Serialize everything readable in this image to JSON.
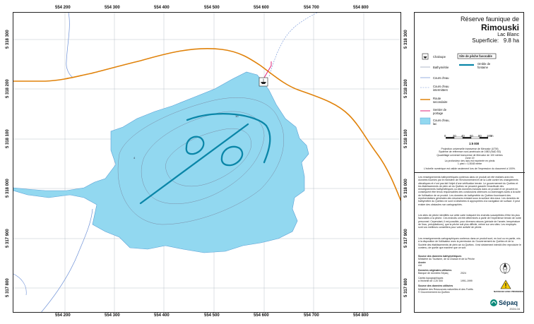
{
  "map": {
    "x_ticks_top": [
      "554 200",
      "554 300",
      "554 400",
      "554 500",
      "554 600",
      "554 700",
      "554 800"
    ],
    "x_ticks_bottom": [
      "554 200",
      "554 300",
      "554 400",
      "554 500",
      "554 600",
      "554 700",
      "554 800"
    ],
    "y_ticks": [
      "5 318 300",
      "5 318 200",
      "5 318 100",
      "5 318 000",
      "5 317 900",
      "5 317 800"
    ],
    "contour_labels": [
      "10",
      "4",
      "6"
    ]
  },
  "title": {
    "line1": "Réserve faunique de",
    "line2": "Rimouski",
    "line3": "Lac Blanc",
    "area_label": "Superficie:",
    "area_value": "9.8 ha"
  },
  "legend": {
    "chaloupe": "Chaloupe",
    "bathymetrie": "Bathymétrie",
    "cours_eau": "Cours d'eau",
    "cours_eau_int_1": "Cours d'eau",
    "cours_eau_int_2": "intermittent",
    "route_1": "Route",
    "route_2": "secondaire",
    "sentier_1": "Sentier de",
    "sentier_2": "portage",
    "lac_1": "Cours d'eau,",
    "lac_2": "lac",
    "site_title": "Site de pêche favorable",
    "omble_1": "Omble de",
    "omble_2": "fontaine"
  },
  "scale": {
    "ticks": [
      "0",
      "20",
      "40",
      "60",
      "80",
      "100"
    ],
    "unit": "m",
    "ratio": "1:5 000"
  },
  "projection": [
    "Projection universelle transverse de Mercator (UTM)",
    "Système de référence nord-américain de 1983 (NAD 83)",
    "Quadrillage universel transverse de Mercator de 100 mètres",
    "Zone 19",
    "La profondeur des lacs est exprimée en pieds",
    "1 pied = 0,3048 mètre"
  ],
  "scale_note": "L'échelle numérique est valide seulement lors de l'impression du document à 100%.",
  "paragraphs": [
    "Les renseignements bathymétriques contenus dans ce produit ont été réalisés avec les données fournies par le ministère de l'Environnement et de la Lutte contre les changements climatiques et n'ont pas fait l'objet d'une vérification terrain. Le gouvernement du Québec et les établissements de plein air du Québec ne peuvent garantir l'exactitude des renseignements bathymétriques ou des données incluses dans ce produit et ne peuvent en conséquent être tenus responsables des conclusions obtenues ou dommages subis à la suite de l'utilisation de ce produit. Les données de bathymétrie du Québec fournissent des représentations générales des structures existant sous la surface des eaux. Les données de bathymétrie du Québec ne sont ni destinées ni appropriées à la navigation de surface. Il peut exister des obstacles non cartographiés.",
    "Les sites de pêche identifiés sur cette carte indiquent les endroits susceptibles d'être les plus favorables à la pêche. Ces endroits ont été déterminés à partir de l'expérience terrain de notre personnel. Cependant, il est possible, pour diverses raisons (période de l'année, température de l'eau, précipitations), que la pêche soit plus difficile, même sur ces sites. Les employés sont vos meilleurs conseillers pour votre activité de pêche.",
    "Les renseignements cartographiques contenus dans ce produit sont, en tout ou en partie, mis à la disposition de l'utilisateur avec la permission du Gouvernement du Québec et de la Société des établissements de plein air du Québec. Il est strictement interdit d'en reproduire le contenu, de quelle que manière que ce soit."
  ],
  "sources": {
    "bathy_title": "Source des données bathymétriques",
    "bathy_1": "Ministère du Tourisme, de la Chasse et de la Pêche",
    "bathy_label": "Année",
    "bathy_value": "n/d",
    "orig_title": "Données originales utilisées",
    "orig_row1_label": "Banque de données Sépaq",
    "orig_row1_year": "2024",
    "orig_row2_label": "Cartes topographiques",
    "orig_row2_label2": "à l'échelle de 1:20 000",
    "orig_row2_year": "1991-1999",
    "other_title": "Source des données utilisées",
    "other_1": "Ministère des Ressources naturelles et des Forêts",
    "other_2": "© Gouvernement du Québec"
  },
  "warning": "NAVIGUEZ AVEC PRUDENCE",
  "logo": "Sépaq",
  "date": "2024-04",
  "colors": {
    "lake": "#92d8f0",
    "lake_stroke": "#5a9fd4",
    "road": "#e0820a",
    "stream": "#6b8fd6",
    "portage": "#e0247a",
    "fishing": "#0a86a8",
    "contour": "#7b8da6"
  }
}
